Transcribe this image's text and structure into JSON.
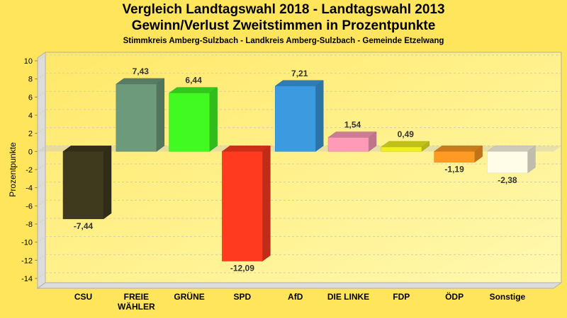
{
  "chart_data": {
    "type": "bar",
    "title": "Vergleich Landtagswahl 2018 - Landtagswahl 2013",
    "subtitle": "Gewinn/Verlust Zweitstimmen in Prozentpunkte",
    "subsubtitle": "Stimmkreis Amberg-Sulzbach - Landkreis Amberg-Sulzbach - Gemeinde Etzelwang",
    "xlabel": "",
    "ylabel": "Prozentpunkte",
    "ylim": [
      -14,
      10
    ],
    "yticks": [
      10,
      8,
      6,
      4,
      2,
      0,
      -2,
      -4,
      -6,
      -8,
      -10,
      -12,
      -14
    ],
    "grid": true,
    "legend": "none",
    "categories": [
      "CSU",
      "FREIE WÄHLER",
      "GRÜNE",
      "SPD",
      "AfD",
      "DIE LINKE",
      "FDP",
      "ÖDP",
      "Sonstige"
    ],
    "category_lines": [
      [
        "CSU"
      ],
      [
        "FREIE",
        "WÄHLER"
      ],
      [
        "GRÜNE"
      ],
      [
        "SPD"
      ],
      [
        "AfD"
      ],
      [
        "DIE LINKE"
      ],
      [
        "FDP"
      ],
      [
        "ÖDP"
      ],
      [
        "Sonstige"
      ]
    ],
    "values": [
      -7.44,
      7.43,
      6.44,
      -12.09,
      7.21,
      1.54,
      0.49,
      -1.19,
      -2.38
    ],
    "value_labels": [
      "-7,44",
      "7,43",
      "6,44",
      "-12,09",
      "7,21",
      "1,54",
      "0,49",
      "-1,19",
      "-2,38"
    ],
    "colors": [
      "#3F3A1E",
      "#6E9A7C",
      "#40FA22",
      "#FF3A1E",
      "#3B9AE0",
      "#FF9BB8",
      "#F0F020",
      "#FF9A22",
      "#FFFDE8"
    ]
  }
}
